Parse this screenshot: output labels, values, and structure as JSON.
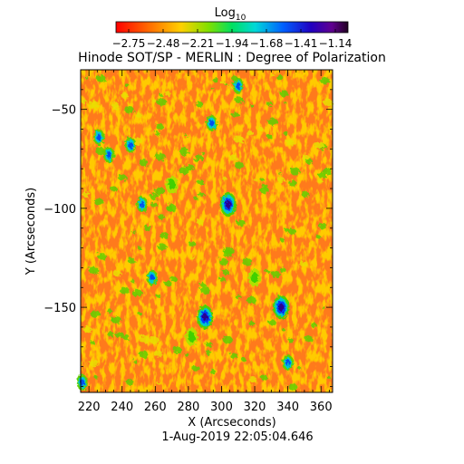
{
  "chart_data": {
    "type": "heatmap",
    "title": "Hinode SOT/SP - MERLIN : Degree of Polarization",
    "colorbar": {
      "label_base": "Log",
      "label_sub": "10",
      "ticks": [
        "−2.75",
        "−2.48",
        "−2.21",
        "−1.94",
        "−1.68",
        "−1.41",
        "−1.14"
      ],
      "range": [
        -2.75,
        -1.14
      ],
      "colormap": "rainbow: red (low) → orange → yellow → green → cyan → blue → purple/black (high)"
    },
    "xlabel": "X (Arcseconds)",
    "ylabel": "Y (Arcseconds)",
    "xlim": [
      215,
      367
    ],
    "ylim": [
      -193,
      -30
    ],
    "xticks": [
      220,
      240,
      260,
      280,
      300,
      320,
      340,
      360
    ],
    "yticks": [
      -50,
      -100,
      -150
    ],
    "timestamp": "1-Aug-2019 22:05:04.646",
    "background_level": "orange (approximately −2.6)",
    "features": [
      {
        "x": 290,
        "y": -155,
        "level": "blue/purple"
      },
      {
        "x": 304,
        "y": -98,
        "level": "blue/purple"
      },
      {
        "x": 336,
        "y": -150,
        "level": "blue/purple"
      },
      {
        "x": 310,
        "y": -38,
        "level": "blue"
      },
      {
        "x": 232,
        "y": -73,
        "level": "blue"
      },
      {
        "x": 245,
        "y": -68,
        "level": "blue"
      },
      {
        "x": 252,
        "y": -98,
        "level": "blue"
      },
      {
        "x": 258,
        "y": -135,
        "level": "blue"
      },
      {
        "x": 294,
        "y": -57,
        "level": "blue"
      },
      {
        "x": 216,
        "y": -188,
        "level": "blue"
      },
      {
        "x": 340,
        "y": -178,
        "level": "blue"
      },
      {
        "x": 226,
        "y": -64,
        "level": "blue"
      },
      {
        "x": 282,
        "y": -165,
        "level": "green"
      },
      {
        "x": 320,
        "y": -135,
        "level": "green"
      },
      {
        "x": 270,
        "y": -88,
        "level": "green"
      }
    ]
  }
}
